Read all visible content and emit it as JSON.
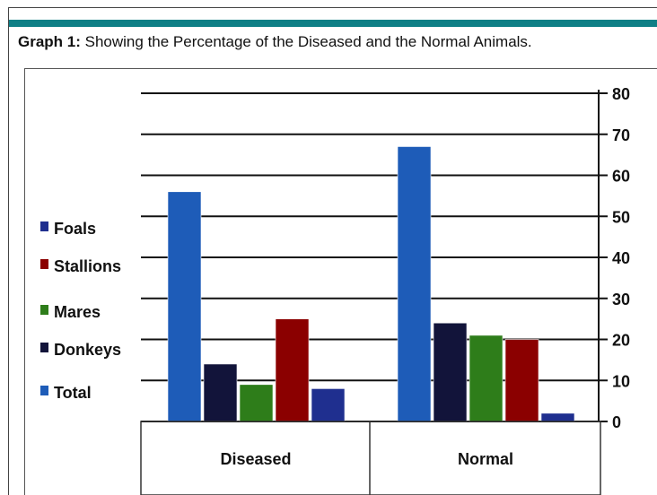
{
  "caption": {
    "label": "Graph 1:",
    "text": " Showing the Percentage of the Diseased and the Normal Animals."
  },
  "colors": {
    "accent_bar": "#0f7f86"
  },
  "chart_data": {
    "type": "bar",
    "categories": [
      "Diseased",
      "Normal"
    ],
    "ylim": [
      0,
      80
    ],
    "yticks": [
      0,
      10,
      20,
      30,
      40,
      50,
      60,
      70,
      80
    ],
    "grid": true,
    "legend_position": "left",
    "legend": [
      {
        "name": "Foals",
        "color": "#1f2f8f"
      },
      {
        "name": "Stallions",
        "color": "#8b0000"
      },
      {
        "name": "Mares",
        "color": "#2e7d1a"
      },
      {
        "name": "Donkeys",
        "color": "#12143a"
      },
      {
        "name": "Total",
        "color": "#1e5cb8"
      }
    ],
    "bars": [
      {
        "category": "Diseased",
        "values": [
          56,
          14,
          9,
          25,
          8
        ],
        "colors": [
          "#1e5cb8",
          "#12143a",
          "#2e7d1a",
          "#8b0000",
          "#1f2f8f"
        ]
      },
      {
        "category": "Normal",
        "values": [
          67,
          24,
          21,
          20,
          2
        ],
        "colors": [
          "#1e5cb8",
          "#12143a",
          "#2e7d1a",
          "#8b0000",
          "#1f2f8f"
        ]
      }
    ]
  }
}
